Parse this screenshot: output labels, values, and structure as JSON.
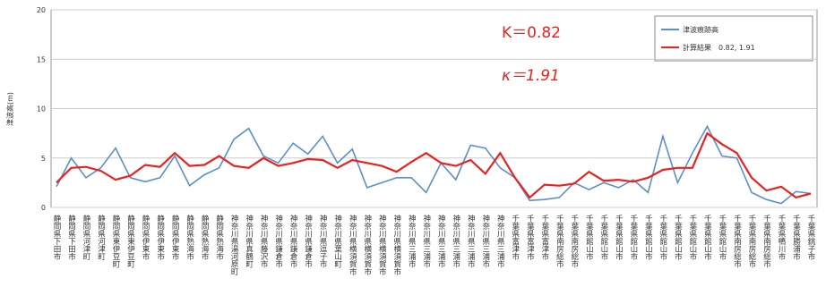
{
  "chart_data": {
    "type": "line",
    "y_label": "津波高(m)",
    "annotations": [
      "Κ＝0.82",
      "κ＝1.91"
    ],
    "categories": [
      "静岡県下田市",
      "静岡県下田市",
      "静岡県河津町",
      "静岡県河津町",
      "静岡県東伊豆町",
      "静岡県東伊豆町",
      "静岡県伊東市",
      "静岡県伊東市",
      "静岡県伊東市",
      "静岡県熱海市",
      "静岡県熱海市",
      "静岡県熱海市",
      "神奈川県湯河原町",
      "神奈川県真鶴町",
      "神奈川県藤沢市",
      "神奈川県鎌倉市",
      "神奈川県鎌倉市",
      "神奈川県鎌倉市",
      "神奈川県逗子市",
      "神奈川県葉山町",
      "神奈川県横須賀市",
      "神奈川県横須賀市",
      "神奈川県横須賀市",
      "神奈川県横須賀市",
      "神奈川県三浦市",
      "神奈川県三浦市",
      "神奈川県三浦市",
      "神奈川県三浦市",
      "神奈川県三浦市",
      "神奈川県三浦市",
      "神奈川県三浦市",
      "千葉県富津市",
      "千葉県富津市",
      "千葉県富津市",
      "千葉県南房総市",
      "千葉県南房総市",
      "千葉県館山市",
      "千葉県館山市",
      "千葉県館山市",
      "千葉県館山市",
      "千葉県館山市",
      "千葉県館山市",
      "千葉県館山市",
      "千葉県館山市",
      "千葉県館山市",
      "千葉県館山市",
      "千葉県南房総市",
      "千葉県南房総市",
      "千葉県南房総市",
      "千葉県鴨川市",
      "千葉県勝浦市",
      "千葉県銚子市"
    ],
    "series": [
      {
        "name": "津波痕跡高",
        "color": "#5b8fc9",
        "values": [
          2.1,
          5.0,
          3.0,
          4.0,
          6.0,
          3.0,
          2.6,
          3.0,
          5.2,
          2.2,
          3.3,
          4.0,
          6.9,
          8.0,
          5.2,
          4.5,
          6.5,
          5.4,
          7.2,
          4.5,
          5.9,
          2.0,
          2.5,
          3.0,
          3.0,
          1.5,
          4.5,
          2.8,
          6.3,
          6.0,
          4.0,
          3.0,
          0.7,
          0.8,
          1.0,
          2.5,
          1.8,
          2.5,
          2.0,
          2.8,
          1.5,
          7.2,
          2.5,
          5.5,
          8.2,
          5.2,
          5.0,
          1.5,
          0.8,
          0.4,
          1.6,
          1.4
        ]
      },
      {
        "name": "計算結果　0.82, 1.91",
        "color": "#e8231f",
        "values": [
          2.5,
          4.0,
          4.1,
          3.7,
          2.8,
          3.2,
          4.3,
          4.1,
          5.5,
          4.2,
          4.3,
          5.2,
          4.2,
          4.0,
          5.0,
          4.2,
          4.5,
          4.9,
          4.8,
          4.0,
          4.8,
          4.5,
          4.2,
          3.6,
          4.6,
          5.5,
          4.5,
          4.2,
          4.8,
          3.4,
          5.5,
          3.0,
          1.0,
          2.3,
          2.2,
          2.4,
          3.6,
          2.7,
          2.8,
          2.6,
          3.0,
          3.8,
          4.0,
          4.0,
          7.5,
          6.4,
          5.5,
          3.0,
          1.7,
          2.1,
          1.0,
          1.4
        ]
      }
    ],
    "ylim": [
      0,
      20
    ],
    "yticks": [
      0,
      5,
      10,
      15,
      20
    ],
    "grid": true
  }
}
